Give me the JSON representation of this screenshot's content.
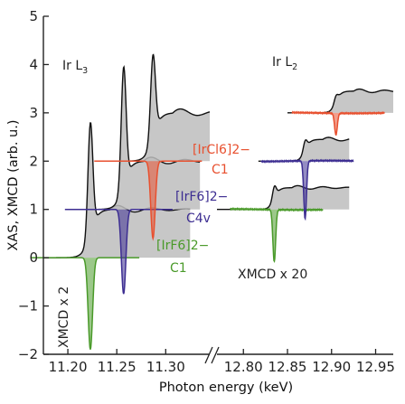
{
  "chart_data": {
    "type": "line",
    "xlabel": "Photon energy (keV)",
    "ylabel": "XAS, XMCD (arb. u.)",
    "ylim": [
      -2,
      5
    ],
    "y_ticks": [
      "5",
      "4",
      "3",
      "2",
      "1",
      "0",
      "−1",
      "−2"
    ],
    "x_ticks_left": [
      "11.20",
      "11.25",
      "11.30"
    ],
    "x_ticks_right": [
      "12.80",
      "12.85",
      "12.90",
      "12.95"
    ],
    "x_ticks_values_left": [
      11.2,
      11.25,
      11.3
    ],
    "x_ticks_values_right": [
      12.8,
      12.85,
      12.9,
      12.95
    ],
    "xlim_left": [
      11.175,
      11.345
    ],
    "xlim_right": [
      12.77,
      12.97
    ],
    "edges": [
      {
        "name": "Ir L3",
        "base": "Ir L",
        "sub": "3"
      },
      {
        "name": "Ir L2",
        "base": "Ir L",
        "sub": "2"
      }
    ],
    "annotations": {
      "irf6_oh": {
        "formula": "[IrF6]2−",
        "symmetry": "C1",
        "color": "#4a9a2a"
      },
      "irf6_c4v": {
        "formula": "[IrF6]2−",
        "symmetry": "C4v",
        "color": "#3d2e92"
      },
      "ircl6": {
        "formula": "[IrCl6]2−",
        "symmetry": "C1",
        "color": "#e8502f"
      },
      "xmcd_x2": "XMCD x 2",
      "xmcd_x20": "XMCD x 20"
    },
    "series": [
      {
        "edge": "L3",
        "color": "#4a9a2a",
        "offset": 0,
        "xas_peak": {
          "x": 11.223,
          "y": 3.3
        },
        "xmcd_min": {
          "x": 11.223,
          "y": -1.9
        }
      },
      {
        "edge": "L3",
        "color": "#3d2e92",
        "offset": 1,
        "xas_peak": {
          "x": 11.257,
          "y": 4.45
        },
        "xmcd_min": {
          "x": 11.257,
          "y": -0.75
        }
      },
      {
        "edge": "L3",
        "color": "#e8502f",
        "offset": 2,
        "xas_peak": {
          "x": 11.287,
          "y": 4.7
        },
        "xmcd_min": {
          "x": 11.287,
          "y": 0.4
        }
      },
      {
        "edge": "L2",
        "color": "#4a9a2a",
        "offset": 1,
        "xas_peak": {
          "x": 12.835,
          "y": 1.7
        },
        "xmcd_min": {
          "x": 12.835,
          "y": -0.08
        }
      },
      {
        "edge": "L2",
        "color": "#3d2e92",
        "offset": 2,
        "xas_peak": {
          "x": 12.87,
          "y": 2.65
        },
        "xmcd_min": {
          "x": 12.87,
          "y": 0.8
        }
      },
      {
        "edge": "L2",
        "color": "#e8502f",
        "offset": 3,
        "xas_peak": {
          "x": 12.905,
          "y": 3.58
        },
        "xmcd_min": {
          "x": 12.905,
          "y": 2.55
        }
      }
    ]
  }
}
